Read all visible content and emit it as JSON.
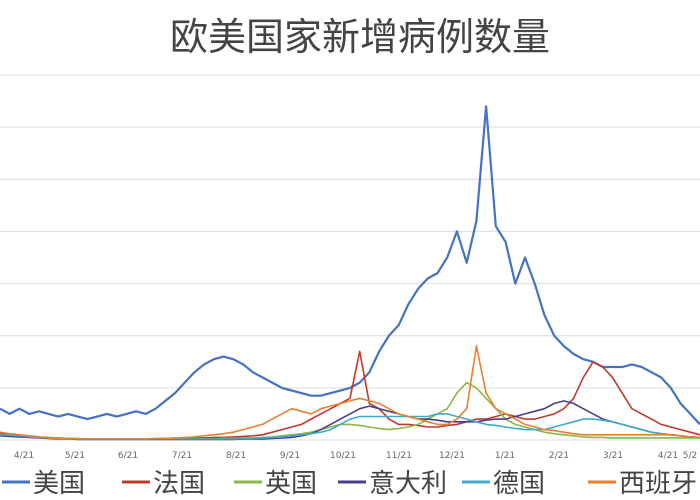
{
  "chart_data": {
    "type": "line",
    "title": "欧美国家新增病例数量",
    "x_ticks": [
      "4/21",
      "5/21",
      "6/21",
      "7/21",
      "8/21",
      "9/21",
      "10/21",
      "11/21",
      "12/21",
      "1/21",
      "2/21",
      "3/21",
      "4/21",
      "5/2"
    ],
    "grid": true,
    "legend_position": "bottom",
    "series": [
      {
        "name": "美国",
        "color": "#4472C4",
        "values": [
          0.06,
          0.05,
          0.06,
          0.05,
          0.055,
          0.05,
          0.045,
          0.05,
          0.045,
          0.04,
          0.045,
          0.05,
          0.045,
          0.05,
          0.055,
          0.05,
          0.06,
          0.075,
          0.09,
          0.11,
          0.13,
          0.145,
          0.155,
          0.16,
          0.155,
          0.145,
          0.13,
          0.12,
          0.11,
          0.1,
          0.095,
          0.09,
          0.085,
          0.085,
          0.09,
          0.095,
          0.1,
          0.11,
          0.13,
          0.17,
          0.2,
          0.22,
          0.26,
          0.29,
          0.31,
          0.32,
          0.35,
          0.4,
          0.34,
          0.42,
          0.64,
          0.41,
          0.38,
          0.3,
          0.35,
          0.3,
          0.24,
          0.2,
          0.18,
          0.165,
          0.155,
          0.15,
          0.14,
          0.14,
          0.14,
          0.145,
          0.14,
          0.13,
          0.12,
          0.1,
          0.07,
          0.05,
          0.03
        ]
      },
      {
        "name": "法国",
        "color": "#C0392B",
        "values": [
          0.012,
          0.01,
          0.008,
          0.006,
          0.005,
          0.004,
          0.003,
          0.003,
          0.002,
          0.002,
          0.002,
          0.002,
          0.002,
          0.002,
          0.002,
          0.002,
          0.002,
          0.002,
          0.003,
          0.003,
          0.004,
          0.004,
          0.005,
          0.005,
          0.006,
          0.007,
          0.008,
          0.01,
          0.015,
          0.02,
          0.025,
          0.03,
          0.04,
          0.05,
          0.06,
          0.07,
          0.08,
          0.17,
          0.07,
          0.06,
          0.04,
          0.03,
          0.03,
          0.028,
          0.025,
          0.025,
          0.028,
          0.03,
          0.035,
          0.04,
          0.04,
          0.045,
          0.05,
          0.045,
          0.04,
          0.04,
          0.045,
          0.05,
          0.06,
          0.08,
          0.12,
          0.15,
          0.14,
          0.12,
          0.09,
          0.06,
          0.05,
          0.04,
          0.03,
          0.025,
          0.02,
          0.015,
          0.01
        ]
      },
      {
        "name": "英国",
        "color": "#8DB646",
        "values": [
          0.01,
          0.009,
          0.008,
          0.007,
          0.006,
          0.005,
          0.004,
          0.003,
          0.003,
          0.002,
          0.002,
          0.002,
          0.002,
          0.002,
          0.002,
          0.002,
          0.002,
          0.002,
          0.002,
          0.002,
          0.002,
          0.002,
          0.002,
          0.003,
          0.003,
          0.004,
          0.004,
          0.005,
          0.006,
          0.008,
          0.01,
          0.012,
          0.015,
          0.02,
          0.025,
          0.03,
          0.03,
          0.028,
          0.025,
          0.022,
          0.02,
          0.022,
          0.025,
          0.03,
          0.04,
          0.05,
          0.06,
          0.09,
          0.11,
          0.1,
          0.08,
          0.06,
          0.04,
          0.03,
          0.025,
          0.02,
          0.015,
          0.012,
          0.01,
          0.008,
          0.006,
          0.005,
          0.005,
          0.004,
          0.004,
          0.004,
          0.004,
          0.004,
          0.004,
          0.004,
          0.004,
          0.004,
          0.004
        ]
      },
      {
        "name": "意大利",
        "color": "#4B3F8C",
        "values": [
          0.008,
          0.007,
          0.006,
          0.005,
          0.004,
          0.003,
          0.002,
          0.002,
          0.001,
          0.001,
          0.001,
          0.001,
          0.001,
          0.001,
          0.001,
          0.001,
          0.001,
          0.001,
          0.001,
          0.001,
          0.001,
          0.001,
          0.001,
          0.001,
          0.001,
          0.002,
          0.002,
          0.002,
          0.003,
          0.004,
          0.005,
          0.008,
          0.012,
          0.02,
          0.03,
          0.04,
          0.05,
          0.06,
          0.065,
          0.06,
          0.055,
          0.05,
          0.045,
          0.04,
          0.04,
          0.038,
          0.035,
          0.035,
          0.035,
          0.035,
          0.038,
          0.04,
          0.04,
          0.045,
          0.05,
          0.055,
          0.06,
          0.07,
          0.075,
          0.07,
          0.06,
          0.05,
          0.04,
          0.035,
          0.03,
          0.025,
          0.02,
          0.015,
          0.012,
          0.01,
          0.008,
          0.006,
          0.005
        ]
      },
      {
        "name": "德国",
        "color": "#3FA9C9",
        "values": [
          0.01,
          0.009,
          0.008,
          0.006,
          0.005,
          0.004,
          0.003,
          0.002,
          0.002,
          0.002,
          0.002,
          0.002,
          0.002,
          0.002,
          0.002,
          0.002,
          0.002,
          0.002,
          0.002,
          0.002,
          0.002,
          0.002,
          0.002,
          0.002,
          0.002,
          0.003,
          0.003,
          0.004,
          0.005,
          0.006,
          0.008,
          0.01,
          0.012,
          0.015,
          0.02,
          0.03,
          0.04,
          0.045,
          0.045,
          0.045,
          0.045,
          0.045,
          0.045,
          0.045,
          0.045,
          0.05,
          0.05,
          0.045,
          0.04,
          0.035,
          0.03,
          0.028,
          0.025,
          0.022,
          0.02,
          0.02,
          0.02,
          0.025,
          0.03,
          0.035,
          0.04,
          0.04,
          0.038,
          0.035,
          0.03,
          0.025,
          0.02,
          0.015,
          0.012,
          0.01,
          0.008,
          0.006,
          0.005
        ]
      },
      {
        "name": "西班牙",
        "color": "#ED7D31",
        "values": [
          0.015,
          0.012,
          0.01,
          0.008,
          0.006,
          0.004,
          0.003,
          0.003,
          0.002,
          0.002,
          0.002,
          0.002,
          0.002,
          0.002,
          0.002,
          0.002,
          0.003,
          0.003,
          0.004,
          0.005,
          0.006,
          0.008,
          0.01,
          0.012,
          0.015,
          0.02,
          0.025,
          0.03,
          0.04,
          0.05,
          0.06,
          0.055,
          0.05,
          0.06,
          0.065,
          0.07,
          0.075,
          0.08,
          0.075,
          0.07,
          0.06,
          0.05,
          0.045,
          0.04,
          0.035,
          0.03,
          0.03,
          0.04,
          0.06,
          0.18,
          0.09,
          0.06,
          0.05,
          0.04,
          0.03,
          0.025,
          0.02,
          0.018,
          0.015,
          0.012,
          0.01,
          0.01,
          0.01,
          0.01,
          0.01,
          0.01,
          0.01,
          0.01,
          0.01,
          0.01,
          0.008,
          0.006,
          0.005
        ]
      }
    ]
  }
}
